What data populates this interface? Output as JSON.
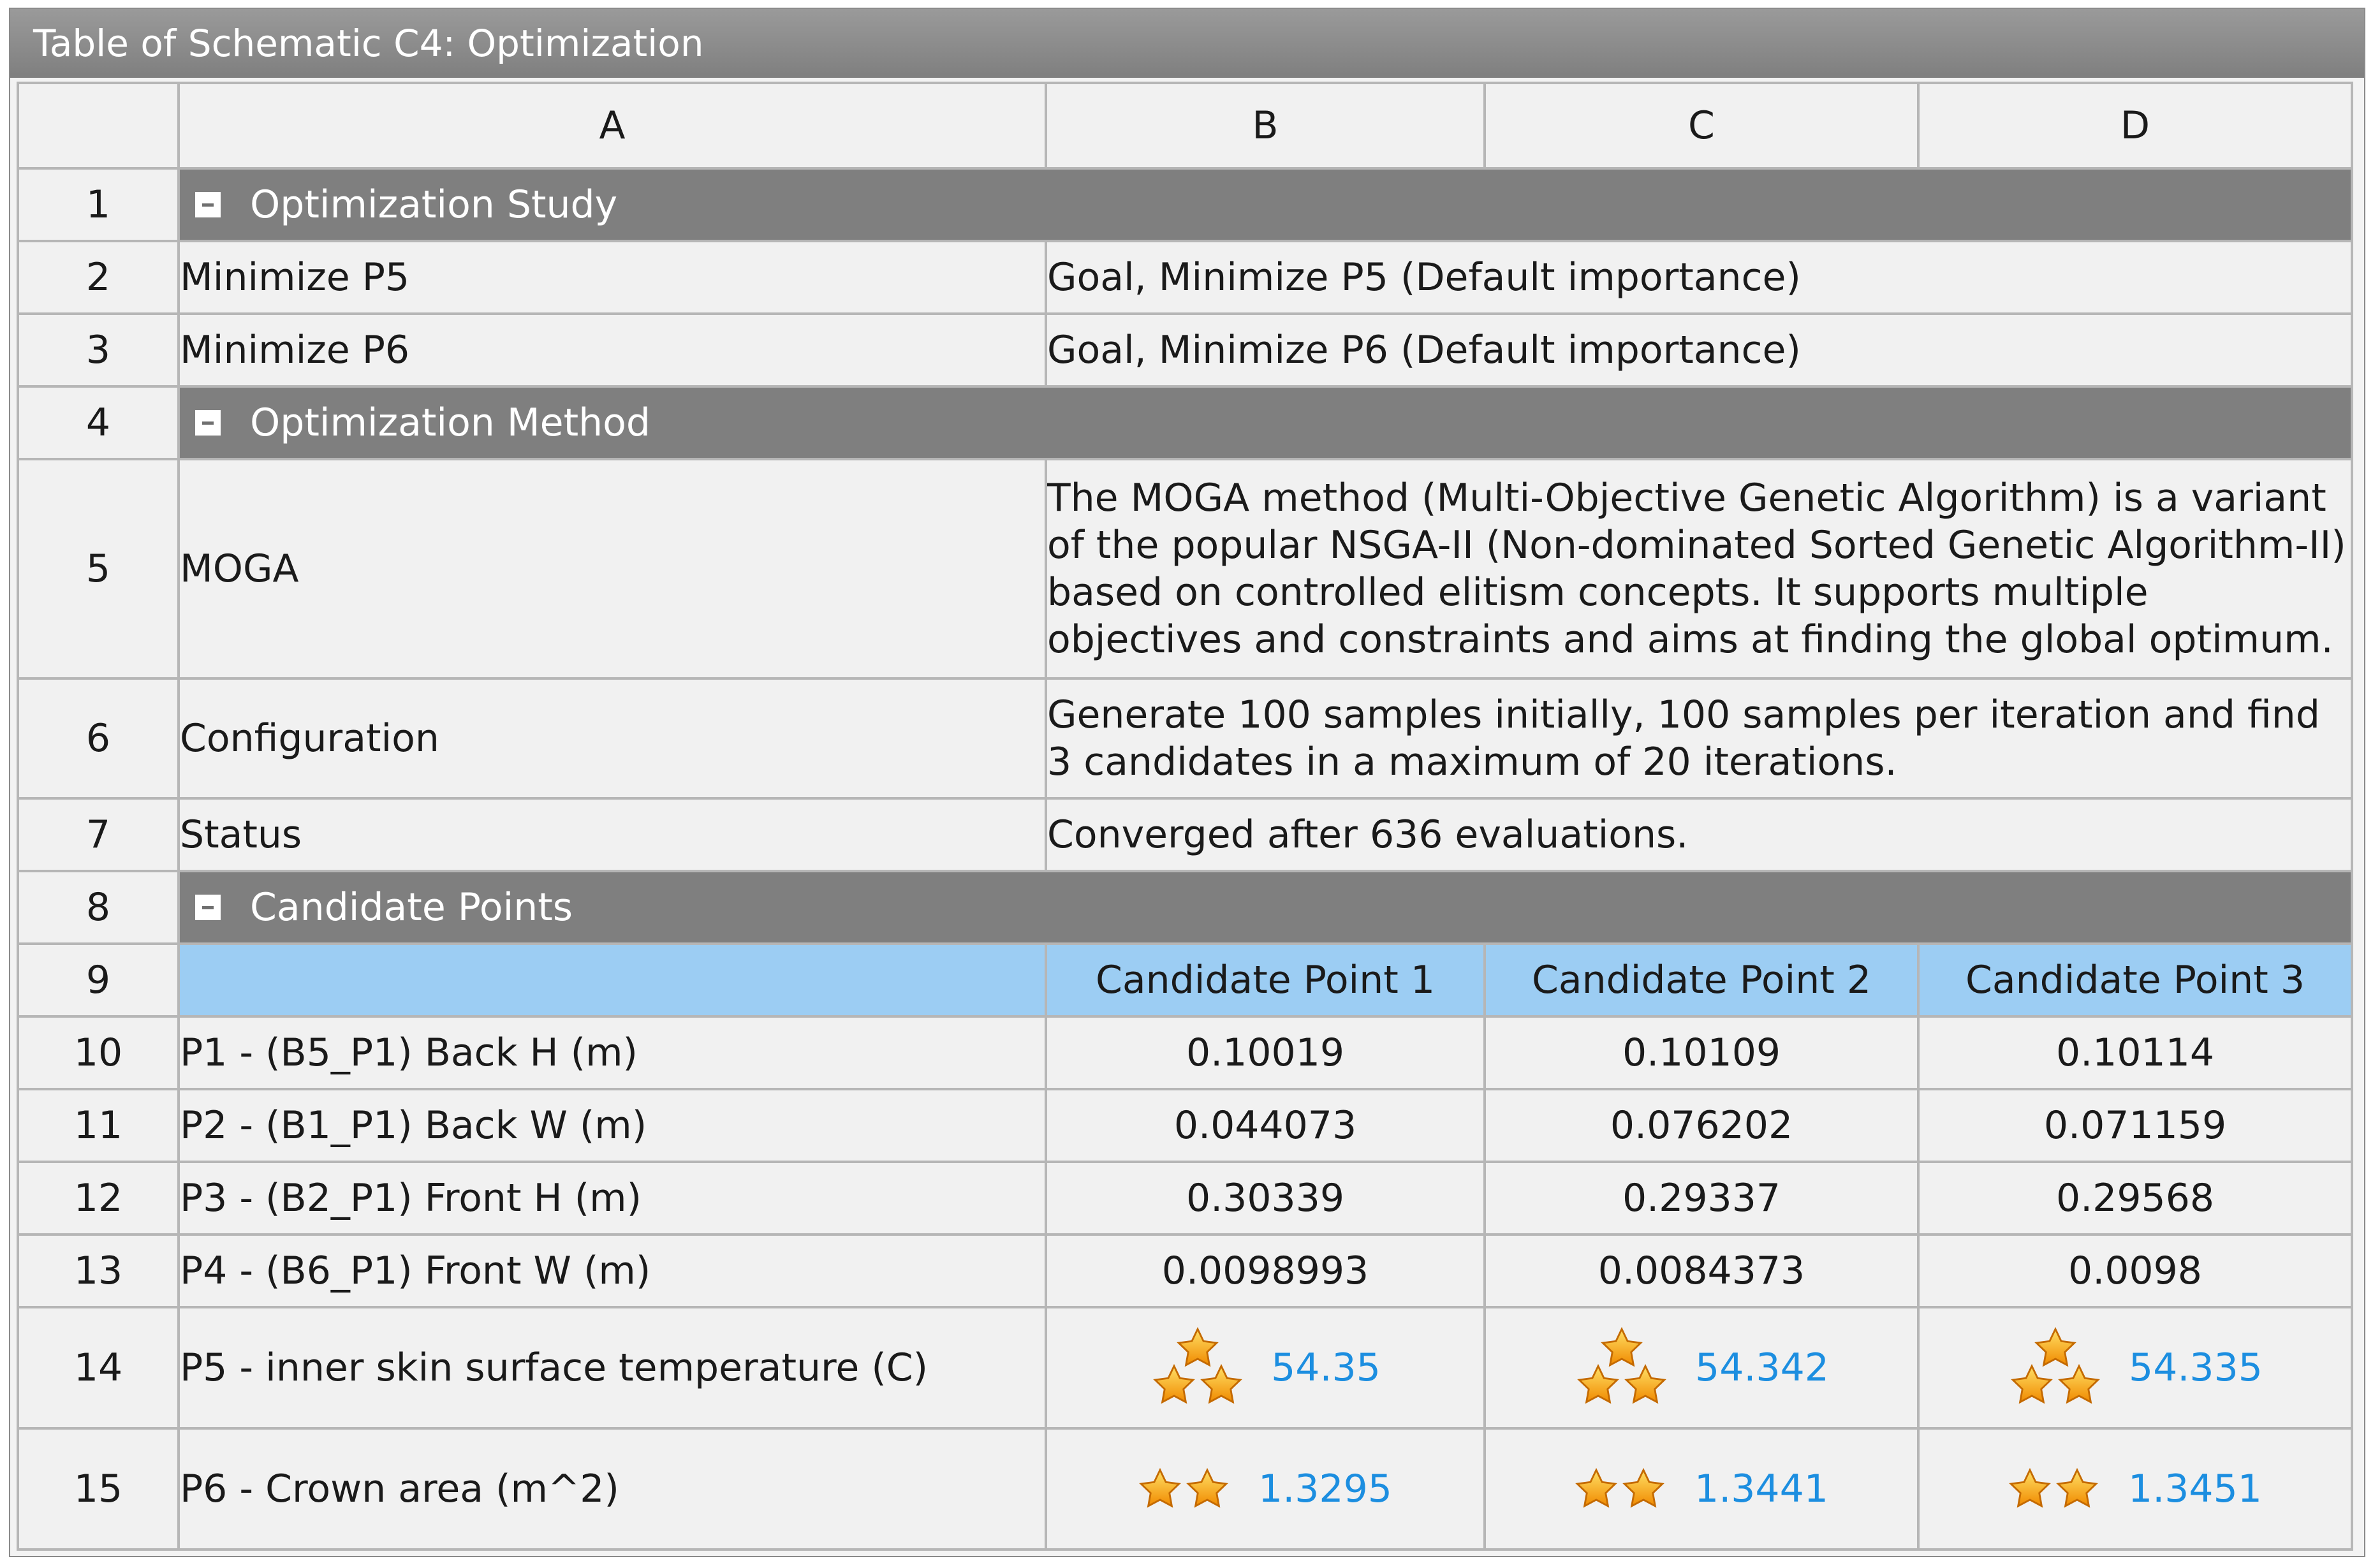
{
  "window": {
    "title": "Table of Schematic C4: Optimization"
  },
  "columns": [
    "A",
    "B",
    "C",
    "D"
  ],
  "rows": {
    "r1": {
      "num": "1",
      "label": "Optimization Study"
    },
    "r2": {
      "num": "2",
      "label": "Minimize P5",
      "value": "Goal, Minimize P5 (Default importance)"
    },
    "r3": {
      "num": "3",
      "label": "Minimize P6",
      "value": "Goal, Minimize P6 (Default importance)"
    },
    "r4": {
      "num": "4",
      "label": "Optimization Method"
    },
    "r5": {
      "num": "5",
      "label": "MOGA",
      "value": "The MOGA method (Multi-Objective Genetic Algorithm) is a variant of the popular NSGA-II (Non-dominated Sorted Genetic Algorithm-II) based on controlled elitism concepts. It supports multiple objectives and constraints and aims at finding the global optimum."
    },
    "r6": {
      "num": "6",
      "label": "Configuration",
      "value": "Generate 100 samples initially, 100 samples per iteration and find 3 candidates in a maximum of 20 iterations."
    },
    "r7": {
      "num": "7",
      "label": "Status",
      "value": "Converged after 636 evaluations."
    },
    "r8": {
      "num": "8",
      "label": "Candidate Points"
    },
    "r9": {
      "num": "9",
      "cp1": "Candidate Point 1",
      "cp2": "Candidate Point 2",
      "cp3": "Candidate Point 3"
    },
    "r10": {
      "num": "10",
      "label": "P1 - (B5_P1) Back H (m)",
      "cp1": "0.10019",
      "cp2": "0.10109",
      "cp3": "0.10114"
    },
    "r11": {
      "num": "11",
      "label": "P2 - (B1_P1) Back W (m)",
      "cp1": "0.044073",
      "cp2": "0.076202",
      "cp3": "0.071159"
    },
    "r12": {
      "num": "12",
      "label": "P3 - (B2_P1) Front H (m)",
      "cp1": "0.30339",
      "cp2": "0.29337",
      "cp3": "0.29568"
    },
    "r13": {
      "num": "13",
      "label": "P4 - (B6_P1) Front W (m)",
      "cp1": "0.0098993",
      "cp2": "0.0084373",
      "cp3": "0.0098"
    },
    "r14": {
      "num": "14",
      "label": "P5 - inner skin surface temperature (C)",
      "cp1": "54.35",
      "cp2": "54.342",
      "cp3": "54.335",
      "rating_stars": 3
    },
    "r15": {
      "num": "15",
      "label": "P6 - Crown area (m^2)",
      "cp1": "1.3295",
      "cp2": "1.3441",
      "cp3": "1.3451",
      "rating_stars": 2
    }
  },
  "icons": {
    "collapse": "minus-box-icon",
    "rating": "star-icon"
  },
  "colors": {
    "section_bg": "#7f7f7f",
    "candidate_header_bg": "#9ccdf3",
    "rated_value": "#1c8ee0",
    "star": "#f4a41a"
  }
}
